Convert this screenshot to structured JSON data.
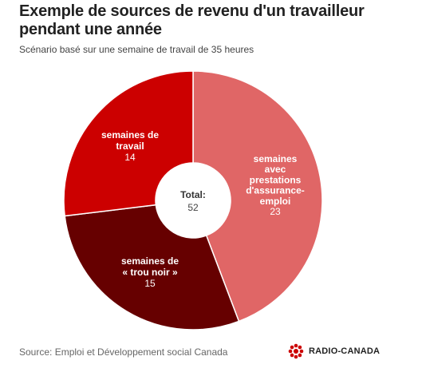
{
  "title": "Exemple de sources de revenu d'un travailleur pendant une année",
  "subtitle": "Scénario basé sur une semaine de travail de 35 heures",
  "source": "Source: Emploi et Développement social Canada",
  "brand": {
    "text": "RADIO-CANADA",
    "icon": "radio-canada-logo-icon",
    "color": "#cc0000"
  },
  "chart_data": {
    "type": "pie",
    "donut": true,
    "start_angle_deg": 0,
    "direction": "clockwise",
    "center_label": {
      "title": "Total:",
      "value": "52"
    },
    "total": 52,
    "slices": [
      {
        "id": "ae",
        "label_lines": [
          "semaines",
          "avec",
          "prestations",
          "d'assurance-",
          "emploi"
        ],
        "value": 23,
        "color": "#e06666"
      },
      {
        "id": "trou",
        "label_lines": [
          "semaines de",
          "« trou noir »"
        ],
        "value": 15,
        "color": "#660000"
      },
      {
        "id": "travail",
        "label_lines": [
          "semaines de",
          "travail"
        ],
        "value": 14,
        "color": "#cc0000"
      }
    ]
  }
}
